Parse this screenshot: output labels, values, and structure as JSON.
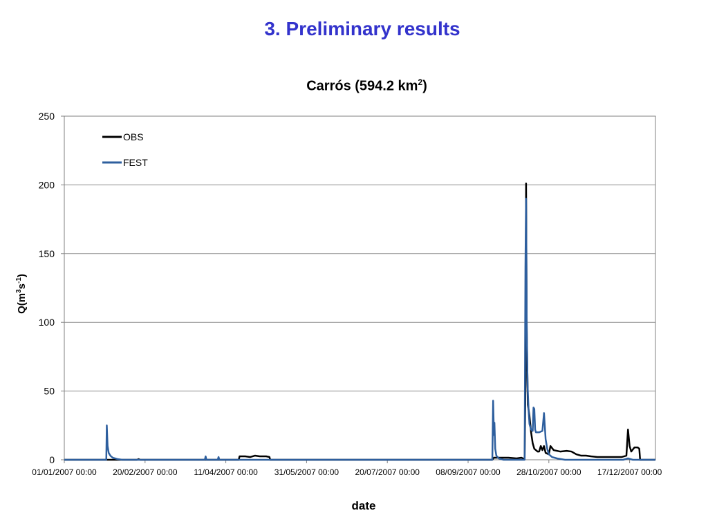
{
  "slide": {
    "title": "3. Preliminary results"
  },
  "chart_data": {
    "type": "line",
    "title": {
      "main": "Carrós (594.2 km",
      "sup": "2",
      "tail": ")"
    },
    "xlabel": "date",
    "ylabel": {
      "pre": "Q(m",
      "sup1": "3",
      "mid": "s",
      "sup2": "-1",
      "post": ")"
    },
    "ylim": [
      0,
      250
    ],
    "yticks": [
      "0",
      "50",
      "100",
      "150",
      "200",
      "250"
    ],
    "x_range_days": [
      0,
      366
    ],
    "xticks": [
      {
        "day": 0,
        "label": "01/01/2007 00:00"
      },
      {
        "day": 50,
        "label": "20/02/2007 00:00"
      },
      {
        "day": 100,
        "label": "11/04/2007 00:00"
      },
      {
        "day": 150,
        "label": "31/05/2007 00:00"
      },
      {
        "day": 200,
        "label": "20/07/2007 00:00"
      },
      {
        "day": 250,
        "label": "08/09/2007 00:00"
      },
      {
        "day": 300,
        "label": "28/10/2007 00:00"
      },
      {
        "day": 350,
        "label": "17/12/2007 00:00"
      }
    ],
    "grid": true,
    "legend_position": "top-left",
    "series": [
      {
        "name": "OBS",
        "color": "#000000",
        "points": [
          [
            0,
            0
          ],
          [
            45,
            0
          ],
          [
            46,
            0.5
          ],
          [
            47,
            0
          ],
          [
            108,
            0
          ],
          [
            108.5,
            2.5
          ],
          [
            112,
            2.5
          ],
          [
            115,
            2
          ],
          [
            118,
            3
          ],
          [
            121,
            2.5
          ],
          [
            125,
            2.5
          ],
          [
            127,
            2
          ],
          [
            127.5,
            0
          ],
          [
            265,
            0
          ],
          [
            266,
            1.5
          ],
          [
            270,
            1.5
          ],
          [
            275,
            1.5
          ],
          [
            280,
            1
          ],
          [
            283,
            1.5
          ],
          [
            285,
            0.5
          ],
          [
            285.6,
            60
          ],
          [
            285.9,
            201
          ],
          [
            286.3,
            95
          ],
          [
            287,
            40
          ],
          [
            288,
            32
          ],
          [
            289,
            20
          ],
          [
            290,
            12
          ],
          [
            291,
            8
          ],
          [
            293,
            6
          ],
          [
            294,
            6
          ],
          [
            295,
            10
          ],
          [
            296,
            7
          ],
          [
            297,
            10
          ],
          [
            298,
            5
          ],
          [
            300,
            4
          ],
          [
            301,
            10
          ],
          [
            303,
            7
          ],
          [
            307,
            6
          ],
          [
            311,
            6.5
          ],
          [
            314,
            6
          ],
          [
            317,
            4
          ],
          [
            320,
            3
          ],
          [
            323,
            3
          ],
          [
            326,
            2.5
          ],
          [
            330,
            2
          ],
          [
            336,
            2
          ],
          [
            341,
            2
          ],
          [
            345,
            2
          ],
          [
            348,
            3
          ],
          [
            349,
            22
          ],
          [
            350,
            10
          ],
          [
            351,
            6
          ],
          [
            353,
            9
          ],
          [
            355,
            9
          ],
          [
            356,
            8
          ],
          [
            356.5,
            0
          ],
          [
            366,
            0
          ]
        ]
      },
      {
        "name": "FEST",
        "color": "#2e5f9e",
        "points": [
          [
            0,
            0
          ],
          [
            26,
            0
          ],
          [
            26.3,
            25
          ],
          [
            26.8,
            10
          ],
          [
            27.5,
            5
          ],
          [
            28.5,
            3
          ],
          [
            30,
            1.5
          ],
          [
            33,
            0.5
          ],
          [
            36,
            0
          ],
          [
            87,
            0
          ],
          [
            87.5,
            2.5
          ],
          [
            88,
            0
          ],
          [
            95,
            0
          ],
          [
            95.5,
            2
          ],
          [
            96,
            0
          ],
          [
            265,
            0
          ],
          [
            265.5,
            43
          ],
          [
            266,
            18
          ],
          [
            266.3,
            27
          ],
          [
            266.8,
            8
          ],
          [
            267.5,
            3
          ],
          [
            269,
            1
          ],
          [
            272,
            0
          ],
          [
            285,
            0
          ],
          [
            285.5,
            140
          ],
          [
            285.9,
            190
          ],
          [
            286.3,
            100
          ],
          [
            286.8,
            55
          ],
          [
            287.5,
            35
          ],
          [
            288,
            26
          ],
          [
            289,
            22
          ],
          [
            290,
            21
          ],
          [
            290.5,
            38
          ],
          [
            291,
            37
          ],
          [
            291.5,
            22
          ],
          [
            292,
            20
          ],
          [
            294,
            20
          ],
          [
            296,
            21
          ],
          [
            297,
            34
          ],
          [
            298,
            15
          ],
          [
            299,
            8
          ],
          [
            300,
            4
          ],
          [
            302,
            2
          ],
          [
            305,
            1
          ],
          [
            310,
            0
          ],
          [
            346,
            0
          ],
          [
            349,
            1
          ],
          [
            352,
            0
          ],
          [
            366,
            0
          ]
        ]
      }
    ]
  }
}
